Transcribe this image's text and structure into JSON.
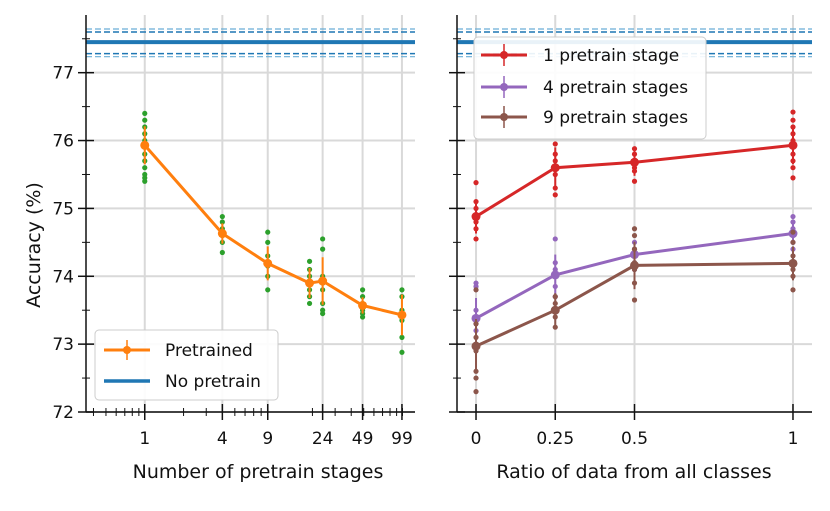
{
  "chart_data": [
    {
      "type": "line",
      "x_scale": "log",
      "xlabel": "Number of pretrain stages",
      "ylabel": "Accuracy (%)",
      "xlim": [
        0.35,
        125
      ],
      "ylim": [
        72,
        77.85
      ],
      "yticks": [
        72,
        73,
        74,
        75,
        76,
        77
      ],
      "xticks": [
        1,
        4,
        9,
        24,
        49,
        99
      ],
      "x": [
        1,
        4,
        9,
        19,
        24,
        49,
        99
      ],
      "series": [
        {
          "name": "Pretrained",
          "color": "#ff7f0e",
          "values": [
            75.93,
            74.63,
            74.19,
            73.9,
            73.93,
            73.57,
            73.43
          ],
          "errors": [
            0.28,
            0.15,
            0.25,
            0.22,
            0.35,
            0.12,
            0.3
          ],
          "scatter_color": "#2ca02c",
          "scatter": [
            [
              75.4,
              75.45,
              75.5,
              75.6,
              75.7,
              75.8,
              75.9,
              76.0,
              76.1,
              76.2,
              76.3,
              76.4
            ],
            [
              74.35,
              74.5,
              74.6,
              74.65,
              74.7,
              74.8,
              74.88
            ],
            [
              73.8,
              74.0,
              74.15,
              74.2,
              74.3,
              74.5,
              74.65
            ],
            [
              73.6,
              73.7,
              73.8,
              73.9,
              74.0,
              74.1,
              74.22
            ],
            [
              73.45,
              73.5,
              73.6,
              73.8,
              73.9,
              74.0,
              74.4,
              74.55
            ],
            [
              73.4,
              73.45,
              73.5,
              73.6,
              73.7,
              73.8
            ],
            [
              72.88,
              73.1,
              73.35,
              73.5,
              73.7,
              73.8
            ]
          ]
        },
        {
          "name": "No pretrain",
          "color": "#1f77b4",
          "value": 77.45,
          "error_band": [
            77.28,
            77.6
          ]
        }
      ],
      "legend_position": "lower-left",
      "legend": [
        "Pretrained",
        "No pretrain"
      ]
    },
    {
      "type": "line",
      "xlabel": "Ratio of data from all classes",
      "xlim": [
        -0.06,
        1.06
      ],
      "ylim": [
        72,
        77.85
      ],
      "xticks": [
        0,
        0.25,
        0.5,
        1
      ],
      "xtick_labels": [
        "0",
        "0.25",
        "0.5",
        "1"
      ],
      "x": [
        0,
        0.25,
        0.5,
        1
      ],
      "series": [
        {
          "name": "1 pretrain stage",
          "color": "#d62728",
          "values": [
            74.88,
            75.6,
            75.68,
            75.93
          ],
          "errors": [
            0.25,
            0.3,
            0.2,
            0.28
          ],
          "scatter": [
            [
              74.55,
              74.7,
              74.8,
              74.9,
              75.0,
              75.1,
              75.38
            ],
            [
              75.2,
              75.3,
              75.5,
              75.6,
              75.7,
              75.8,
              75.95
            ],
            [
              75.4,
              75.55,
              75.6,
              75.7,
              75.8,
              75.88
            ],
            [
              75.45,
              75.6,
              75.7,
              75.8,
              75.9,
              76.0,
              76.1,
              76.2,
              76.3,
              76.42
            ]
          ]
        },
        {
          "name": "4 pretrain stages",
          "color": "#9467bd",
          "values": [
            73.38,
            74.02,
            74.32,
            74.63
          ],
          "errors": [
            0.3,
            0.3,
            0.2,
            0.15
          ],
          "scatter": [
            [
              73.2,
              73.3,
              73.4,
              73.5,
              73.85,
              73.9
            ],
            [
              73.7,
              73.85,
              74.0,
              74.1,
              74.2,
              74.55
            ],
            [
              74.1,
              74.2,
              74.3,
              74.4,
              74.5
            ],
            [
              74.4,
              74.5,
              74.6,
              74.7,
              74.8,
              74.88
            ]
          ]
        },
        {
          "name": "9 pretrain stages",
          "color": "#8c564b",
          "values": [
            72.97,
            73.5,
            74.16,
            74.19
          ],
          "errors": [
            0.4,
            0.25,
            0.35,
            0.25
          ],
          "scatter": [
            [
              72.3,
              72.5,
              72.6,
              72.9,
              73.0,
              73.1,
              73.3,
              73.8
            ],
            [
              73.25,
              73.4,
              73.5,
              73.6,
              73.7
            ],
            [
              73.65,
              73.9,
              74.1,
              74.2,
              74.4,
              74.6,
              74.7
            ],
            [
              73.8,
              74.0,
              74.1,
              74.2,
              74.3,
              74.5,
              74.65
            ]
          ]
        },
        {
          "name": "No pretrain",
          "color": "#1f77b4",
          "value": 77.45,
          "error_band": [
            77.28,
            77.6
          ]
        }
      ],
      "legend_position": "top-left",
      "legend": [
        "1 pretrain stage",
        "4 pretrain stages",
        "9 pretrain stages"
      ]
    }
  ]
}
